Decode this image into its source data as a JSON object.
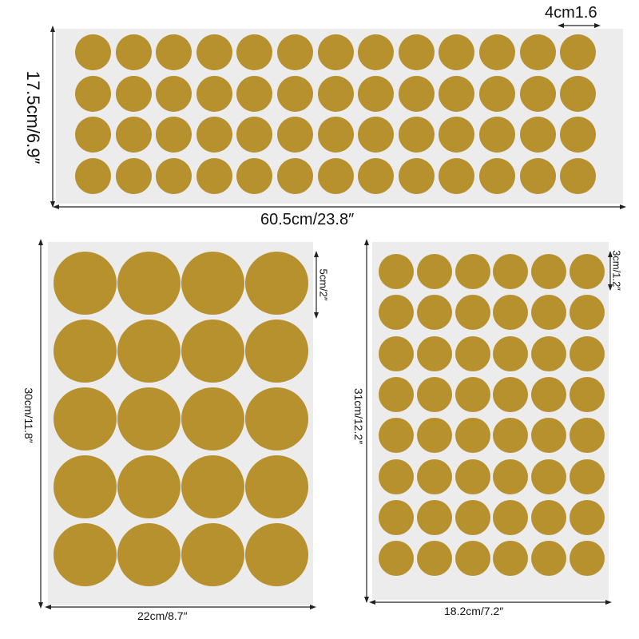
{
  "colors": {
    "dot": "#b8912f",
    "sheet": "#ececec",
    "line": "#222222"
  },
  "sheet_a": {
    "width_label": "60.5cm/23.8″",
    "height_label": "17.5cm/6.9″",
    "dot_label": "4cm1.6",
    "rows": 4,
    "cols": 13
  },
  "sheet_b": {
    "width_label": "22cm/8.7″",
    "height_label": "30cm/11.8″",
    "dot_label": "5cm/2″",
    "rows": 5,
    "cols": 4
  },
  "sheet_c": {
    "width_label": "18.2cm/7.2″",
    "height_label": "31cm/12.2″",
    "dot_label": "3cm/1.2″",
    "rows": 8,
    "cols": 6
  }
}
